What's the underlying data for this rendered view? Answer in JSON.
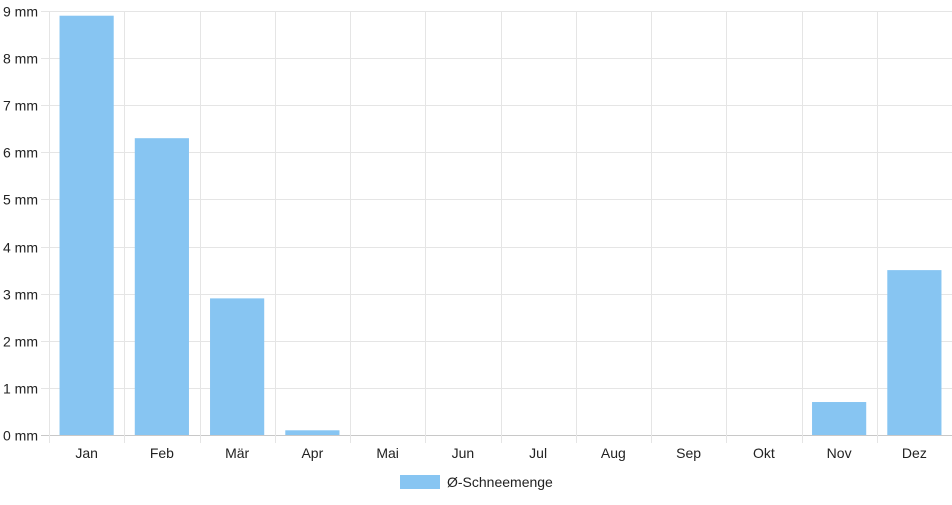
{
  "chart_data": {
    "type": "bar",
    "categories": [
      "Jan",
      "Feb",
      "Mär",
      "Apr",
      "Mai",
      "Jun",
      "Jul",
      "Aug",
      "Sep",
      "Okt",
      "Nov",
      "Dez"
    ],
    "series": [
      {
        "name": "Ø-Schneemenge",
        "values": [
          8.9,
          6.3,
          2.9,
          0.1,
          0,
          0,
          0,
          0,
          0,
          0,
          0.7,
          3.5
        ],
        "color": "#87c5f2"
      }
    ],
    "y_ticks": [
      "0 mm",
      "1 mm",
      "2 mm",
      "3 mm",
      "4 mm",
      "5 mm",
      "6 mm",
      "7 mm",
      "8 mm",
      "9 mm"
    ],
    "ylim": [
      0,
      9
    ],
    "unit": "mm",
    "grid": true,
    "legend_position": "bottom"
  }
}
